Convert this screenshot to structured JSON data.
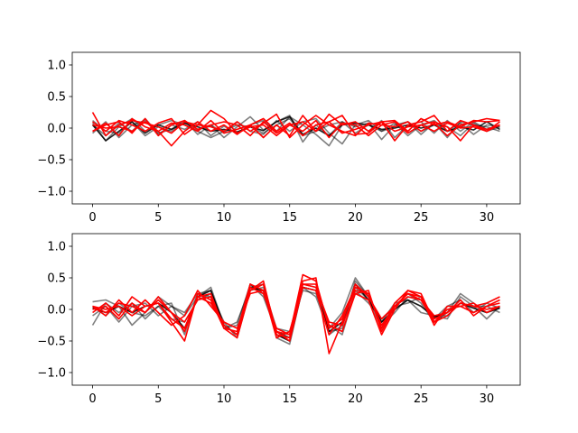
{
  "chart_data": [
    {
      "type": "line",
      "title": "",
      "xlabel": "",
      "ylabel": "",
      "xlim": [
        -1.55,
        32.55
      ],
      "ylim": [
        -1.2,
        1.2
      ],
      "xticks": [
        0,
        5,
        10,
        15,
        20,
        25,
        30
      ],
      "yticks": [
        -1.0,
        -0.5,
        0.0,
        0.5,
        1.0
      ],
      "ytick_labels": [
        "−1.0",
        "−0.5",
        "0.0",
        "0.5",
        "1.0"
      ],
      "grid": false,
      "series": [
        {
          "color": "#000000",
          "opacity": 0.5,
          "values": [
            0.12,
            -0.05,
            -0.08,
            0.1,
            -0.12,
            0.02,
            -0.05,
            0.08,
            -0.03,
            0.05,
            -0.15,
            0.02,
            0.18,
            -0.03,
            0.1,
            0.2,
            -0.22,
            0.05,
            -0.12,
            0.1,
            0.02,
            0.08,
            -0.18,
            0.05,
            0.1,
            -0.1,
            0.08,
            -0.15,
            0.1,
            0.05,
            0.02,
            -0.05
          ]
        },
        {
          "color": "#000000",
          "opacity": 0.5,
          "values": [
            -0.08,
            0.1,
            -0.15,
            0.05,
            0.12,
            -0.1,
            0.05,
            -0.02,
            0.1,
            -0.12,
            0.03,
            -0.08,
            0.05,
            0.12,
            -0.05,
            0.18,
            0.05,
            -0.1,
            -0.28,
            0.05,
            0.1,
            -0.05,
            0.12,
            -0.15,
            0.05,
            0.1,
            -0.08,
            0.12,
            -0.05,
            0.1,
            -0.02,
            0.05
          ]
        },
        {
          "color": "#000000",
          "opacity": 0.5,
          "values": [
            0.05,
            -0.12,
            0.08,
            -0.05,
            0.15,
            -0.08,
            -0.02,
            0.12,
            -0.1,
            0.05,
            -0.08,
            0.1,
            -0.05,
            -0.1,
            0.12,
            -0.05,
            0.1,
            0.15,
            -0.08,
            -0.25,
            0.05,
            0.12,
            -0.05,
            0.08,
            -0.12,
            0.05,
            0.12,
            -0.05,
            0.08,
            -0.1,
            0.05,
            0.02
          ]
        },
        {
          "color": "#000000",
          "opacity": 0.5,
          "values": [
            0.08,
            -0.2,
            0.02,
            0.15,
            -0.05,
            0.05,
            0.12,
            0.05,
            -0.05,
            -0.15,
            -0.05,
            0.05,
            0.02,
            -0.08,
            0.05,
            0.15,
            -0.12,
            -0.05,
            0.05,
            0.1,
            -0.08,
            0.05,
            -0.05,
            0.02,
            0.1,
            -0.05,
            0.05,
            0.02,
            -0.12,
            0.08,
            -0.05,
            0.02
          ]
        },
        {
          "color": "#000000",
          "opacity": 0.85,
          "values": [
            0.05,
            -0.2,
            -0.05,
            0.1,
            -0.08,
            0.05,
            -0.02,
            0.08,
            0.02,
            -0.05,
            -0.02,
            -0.06,
            0.02,
            -0.04,
            0.1,
            0.18,
            -0.1,
            0.0,
            -0.12,
            0.05,
            0.08,
            0.05,
            -0.02,
            0.0,
            0.05,
            0.0,
            0.05,
            -0.05,
            0.02,
            -0.03,
            0.1,
            -0.02
          ]
        },
        {
          "color": "#ff0000",
          "opacity": 1,
          "values": [
            0.25,
            -0.12,
            0.05,
            0.12,
            0.08,
            0.02,
            -0.08,
            0.1,
            0.05,
            0.28,
            0.15,
            -0.08,
            0.02,
            0.05,
            -0.12,
            0.05,
            0.1,
            -0.05,
            0.22,
            0.05,
            0.1,
            -0.05,
            0.1,
            0.12,
            -0.05,
            0.15,
            0.05,
            0.1,
            0.02,
            0.12,
            0.1,
            0.12
          ]
        },
        {
          "color": "#ff0000",
          "opacity": 1,
          "values": [
            0.1,
            -0.05,
            0.12,
            0.05,
            -0.05,
            0.08,
            0.15,
            -0.1,
            0.05,
            0.02,
            -0.05,
            0.1,
            -0.05,
            0.08,
            0.22,
            -0.15,
            0.05,
            0.2,
            0.05,
            -0.05,
            -0.12,
            0.08,
            0.05,
            0.02,
            0.1,
            -0.05,
            0.08,
            -0.12,
            0.05,
            0.1,
            0.15,
            0.12
          ]
        },
        {
          "color": "#ff0000",
          "opacity": 1,
          "values": [
            -0.05,
            0.08,
            -0.12,
            0.15,
            0.02,
            -0.05,
            -0.28,
            -0.05,
            0.1,
            -0.05,
            0.05,
            -0.1,
            0.05,
            -0.15,
            0.05,
            -0.12,
            0.2,
            -0.05,
            0.1,
            0.2,
            -0.1,
            -0.08,
            0.1,
            -0.2,
            0.05,
            0.1,
            0.2,
            -0.05,
            0.12,
            0.05,
            -0.02,
            0.05
          ]
        },
        {
          "color": "#ff0000",
          "opacity": 1,
          "values": [
            -0.05,
            0.05,
            0.1,
            -0.08,
            0.15,
            -0.12,
            0.05,
            0.12,
            -0.02,
            0.05,
            0.1,
            0.05,
            -0.12,
            0.1,
            -0.08,
            0.05,
            -0.05,
            0.12,
            -0.15,
            0.08,
            0.05,
            -0.12,
            0.05,
            0.1,
            -0.08,
            0.05,
            0.1,
            0.02,
            -0.2,
            0.05,
            -0.05,
            0.1
          ]
        },
        {
          "color": "#ff0000",
          "opacity": 1,
          "values": [
            0.05,
            0.0,
            0.02,
            -0.05,
            0.1,
            -0.05,
            0.08,
            0.05,
            -0.05,
            0.12,
            -0.08,
            -0.02,
            0.05,
            0.15,
            -0.05,
            0.08,
            -0.12,
            0.05,
            0.1,
            -0.08,
            -0.02,
            0.05,
            0.1,
            -0.05,
            0.02,
            0.05,
            -0.05,
            0.08,
            0.0,
            0.02,
            -0.05,
            0.05
          ]
        }
      ]
    },
    {
      "type": "line",
      "title": "",
      "xlabel": "",
      "ylabel": "",
      "xlim": [
        -1.55,
        32.55
      ],
      "ylim": [
        -1.2,
        1.2
      ],
      "xticks": [
        0,
        5,
        10,
        15,
        20,
        25,
        30
      ],
      "yticks": [
        -1.0,
        -0.5,
        0.0,
        0.5,
        1.0
      ],
      "ytick_labels": [
        "−1.0",
        "−0.5",
        "0.0",
        "0.5",
        "1.0"
      ],
      "grid": false,
      "series": [
        {
          "color": "#000000",
          "opacity": 0.5,
          "values": [
            0.12,
            0.15,
            0.05,
            -0.25,
            -0.05,
            0.2,
            0.05,
            -0.1,
            0.2,
            0.35,
            -0.25,
            -0.4,
            0.4,
            0.25,
            -0.35,
            -0.45,
            0.4,
            0.35,
            -0.3,
            -0.05,
            0.5,
            0.2,
            -0.25,
            -0.05,
            0.2,
            0.15,
            -0.1,
            -0.15,
            0.2,
            0.05,
            -0.15,
            0.05
          ]
        },
        {
          "color": "#000000",
          "opacity": 0.5,
          "values": [
            -0.25,
            0.1,
            -0.05,
            0.1,
            -0.15,
            0.05,
            0.1,
            -0.4,
            0.25,
            0.3,
            -0.3,
            -0.2,
            0.35,
            0.4,
            -0.45,
            -0.55,
            0.35,
            0.3,
            -0.4,
            -0.25,
            0.35,
            0.15,
            -0.3,
            0.05,
            0.25,
            0.1,
            -0.2,
            -0.05,
            0.25,
            0.1,
            -0.05,
            0.05
          ]
        },
        {
          "color": "#000000",
          "opacity": 0.5,
          "values": [
            0.05,
            -0.1,
            0.1,
            -0.05,
            -0.1,
            0.05,
            -0.15,
            -0.2,
            0.15,
            0.25,
            -0.2,
            -0.45,
            0.3,
            0.35,
            -0.3,
            -0.35,
            0.3,
            0.25,
            -0.25,
            -0.4,
            0.3,
            0.1,
            -0.15,
            0.05,
            0.1,
            0.2,
            -0.15,
            0.05,
            0.15,
            -0.05,
            0.1,
            0.02
          ]
        },
        {
          "color": "#000000",
          "opacity": 0.5,
          "values": [
            -0.1,
            0.05,
            -0.2,
            0.05,
            0.1,
            -0.1,
            0.05,
            -0.05,
            0.25,
            0.2,
            -0.3,
            -0.25,
            0.4,
            0.2,
            -0.35,
            -0.45,
            0.35,
            0.2,
            -0.35,
            -0.3,
            0.45,
            0.2,
            -0.2,
            0.1,
            0.15,
            -0.05,
            -0.1,
            -0.1,
            0.1,
            0.05,
            0.05,
            -0.05
          ]
        },
        {
          "color": "#000000",
          "opacity": 0.9,
          "values": [
            0.02,
            -0.05,
            0.05,
            -0.05,
            0.05,
            0.1,
            -0.05,
            -0.3,
            0.2,
            0.3,
            -0.25,
            -0.4,
            0.35,
            0.3,
            -0.4,
            -0.5,
            0.35,
            0.3,
            -0.35,
            -0.2,
            0.4,
            0.15,
            -0.2,
            0.0,
            0.15,
            0.05,
            -0.12,
            -0.05,
            0.1,
            0.02,
            -0.05,
            0.02
          ]
        },
        {
          "color": "#ff0000",
          "opacity": 1,
          "values": [
            0.05,
            -0.05,
            0.1,
            0.05,
            -0.05,
            0.15,
            -0.05,
            -0.35,
            0.2,
            0.1,
            -0.25,
            -0.4,
            0.3,
            0.45,
            -0.4,
            -0.45,
            0.45,
            0.5,
            -0.7,
            -0.2,
            0.4,
            0.2,
            -0.15,
            0.05,
            0.25,
            0.15,
            -0.2,
            -0.1,
            0.1,
            0.05,
            0.1,
            0.2
          ]
        },
        {
          "color": "#ff0000",
          "opacity": 1,
          "values": [
            -0.05,
            0.1,
            -0.1,
            0.2,
            0.05,
            0.1,
            -0.2,
            -0.5,
            0.25,
            0.15,
            -0.3,
            -0.35,
            0.4,
            0.3,
            -0.35,
            -0.4,
            0.55,
            0.45,
            -0.3,
            -0.15,
            0.3,
            0.25,
            -0.3,
            0.1,
            0.3,
            0.2,
            -0.25,
            0.05,
            0.05,
            -0.05,
            0.05,
            0.15
          ]
        },
        {
          "color": "#ff0000",
          "opacity": 1,
          "values": [
            0.05,
            -0.1,
            0.15,
            -0.05,
            0.15,
            -0.05,
            -0.25,
            -0.1,
            0.3,
            0.05,
            -0.2,
            -0.3,
            0.25,
            0.3,
            -0.45,
            -0.35,
            0.4,
            0.4,
            -0.25,
            -0.35,
            0.25,
            0.3,
            -0.35,
            0.05,
            0.2,
            0.15,
            -0.1,
            -0.05,
            0.15,
            -0.1,
            0.05,
            0.1
          ]
        },
        {
          "color": "#ff0000",
          "opacity": 1,
          "values": [
            0.0,
            0.05,
            -0.15,
            0.1,
            -0.05,
            0.2,
            -0.05,
            -0.2,
            0.15,
            0.2,
            -0.25,
            -0.4,
            0.35,
            0.25,
            -0.3,
            -0.4,
            0.4,
            0.35,
            -0.2,
            -0.25,
            0.25,
            0.15,
            -0.4,
            0.0,
            0.3,
            0.25,
            -0.2,
            0.0,
            0.05,
            0.1,
            -0.05,
            0.05
          ]
        },
        {
          "color": "#ff0000",
          "opacity": 1,
          "values": [
            0.05,
            0.0,
            0.05,
            -0.1,
            0.05,
            0.1,
            -0.15,
            -0.3,
            0.2,
            0.25,
            -0.3,
            -0.45,
            0.3,
            0.4,
            -0.35,
            -0.5,
            0.35,
            0.3,
            -0.4,
            -0.1,
            0.35,
            0.25,
            -0.25,
            0.05,
            0.25,
            0.2,
            -0.15,
            -0.05,
            0.1,
            0.05,
            0.0,
            0.05
          ]
        }
      ]
    }
  ]
}
